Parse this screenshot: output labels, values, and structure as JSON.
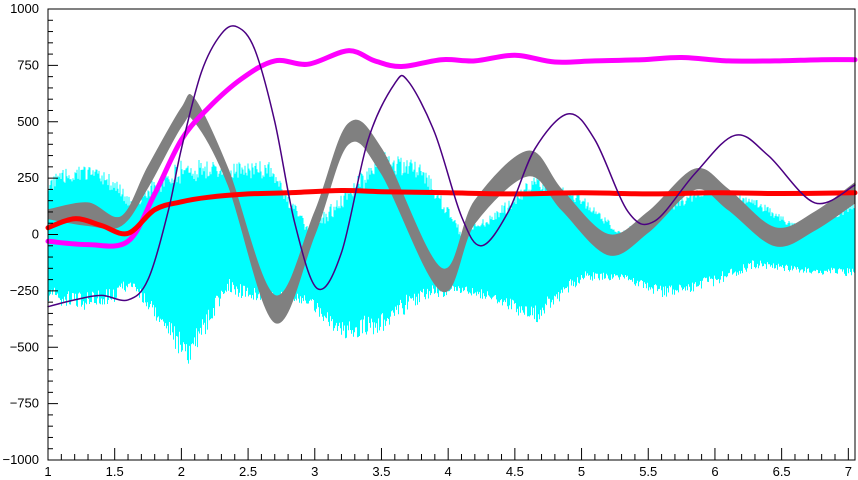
{
  "chart_data": {
    "type": "line",
    "title": "",
    "xlabel": "",
    "ylabel": "",
    "xlim": [
      1,
      7.05
    ],
    "ylim": [
      -1000,
      1000
    ],
    "x_ticks": [
      1,
      1.5,
      2,
      2.5,
      3,
      3.5,
      4,
      4.5,
      5,
      5.5,
      6,
      6.5,
      7
    ],
    "x_tick_labels": [
      "1",
      "1.5",
      "2",
      "2.5",
      "3",
      "3.5",
      "4",
      "4.5",
      "5",
      "5.5",
      "6",
      "6.5",
      "7"
    ],
    "y_ticks": [
      -1000,
      -750,
      -500,
      -250,
      0,
      250,
      500,
      750,
      1000
    ],
    "y_tick_labels": [
      "−1000",
      "−750",
      "−500",
      "−250",
      "0",
      "250",
      "500",
      "750",
      "1000"
    ],
    "grid": false,
    "legend": "none",
    "background": "#ffffff",
    "series": [
      {
        "color": "#00ffff",
        "style": "noisy-band",
        "x": [
          1.0,
          1.25,
          1.5,
          1.62,
          1.8,
          2.05,
          2.35,
          2.65,
          2.95,
          3.2,
          3.5,
          3.8,
          4.1,
          4.35,
          4.65,
          5.0,
          5.3,
          5.6,
          5.95,
          6.3,
          6.65,
          7.05
        ],
        "upper": [
          260,
          320,
          260,
          160,
          250,
          350,
          320,
          330,
          40,
          180,
          380,
          320,
          20,
          100,
          270,
          180,
          10,
          140,
          230,
          160,
          30,
          150
        ],
        "lower": [
          -300,
          -340,
          -300,
          -240,
          -380,
          -590,
          -260,
          -330,
          -310,
          -470,
          -440,
          -300,
          -260,
          -300,
          -400,
          -210,
          -200,
          -280,
          -240,
          -150,
          -170,
          -190
        ]
      },
      {
        "color": "#808080",
        "style": "band",
        "x": [
          1.0,
          1.3,
          1.55,
          1.75,
          2.0,
          2.1,
          2.35,
          2.7,
          3.0,
          3.25,
          3.5,
          3.95,
          4.2,
          4.6,
          4.85,
          5.2,
          5.5,
          5.85,
          6.1,
          6.45,
          6.75,
          7.05
        ],
        "upper": [
          110,
          140,
          80,
          300,
          560,
          600,
          290,
          -270,
          100,
          490,
          380,
          -150,
          150,
          370,
          200,
          0,
          100,
          290,
          200,
          30,
          100,
          230
        ],
        "lower": [
          70,
          40,
          40,
          210,
          480,
          500,
          220,
          -390,
          0,
          400,
          270,
          -250,
          50,
          260,
          110,
          -90,
          10,
          200,
          110,
          -50,
          20,
          140
        ]
      },
      {
        "color": "#ff00ff",
        "style": "thick-line",
        "x": [
          1.0,
          1.3,
          1.6,
          1.8,
          2.0,
          2.2,
          2.45,
          2.7,
          2.95,
          3.25,
          3.45,
          3.65,
          3.95,
          4.2,
          4.5,
          4.8,
          5.1,
          5.45,
          5.75,
          6.1,
          6.45,
          6.8,
          7.05
        ],
        "y": [
          -30,
          -45,
          -30,
          180,
          420,
          560,
          690,
          770,
          755,
          815,
          770,
          745,
          775,
          770,
          795,
          765,
          770,
          775,
          785,
          770,
          770,
          775,
          775
        ]
      },
      {
        "color": "#ff0000",
        "style": "thick-line",
        "x": [
          1.0,
          1.2,
          1.4,
          1.6,
          1.8,
          2.0,
          2.2,
          2.5,
          2.8,
          3.2,
          3.5,
          4.0,
          4.5,
          5.0,
          5.5,
          6.0,
          6.5,
          7.05
        ],
        "y": [
          30,
          70,
          40,
          5,
          110,
          145,
          165,
          180,
          185,
          195,
          190,
          185,
          180,
          185,
          180,
          185,
          182,
          185
        ]
      },
      {
        "color": "#4b0082",
        "style": "thin-line",
        "x": [
          1.0,
          1.2,
          1.4,
          1.6,
          1.75,
          1.9,
          2.0,
          2.15,
          2.3,
          2.42,
          2.55,
          2.7,
          2.85,
          3.02,
          3.2,
          3.4,
          3.6,
          3.7,
          3.9,
          4.1,
          4.25,
          4.45,
          4.65,
          4.9,
          5.1,
          5.35,
          5.55,
          5.85,
          6.15,
          6.4,
          6.75,
          7.05
        ],
        "y": [
          -320,
          -290,
          -270,
          -290,
          -200,
          100,
          380,
          720,
          890,
          920,
          820,
          500,
          50,
          -240,
          -80,
          420,
          670,
          680,
          450,
          80,
          -50,
          100,
          380,
          535,
          420,
          100,
          60,
          270,
          440,
          350,
          140,
          220
        ]
      }
    ]
  }
}
